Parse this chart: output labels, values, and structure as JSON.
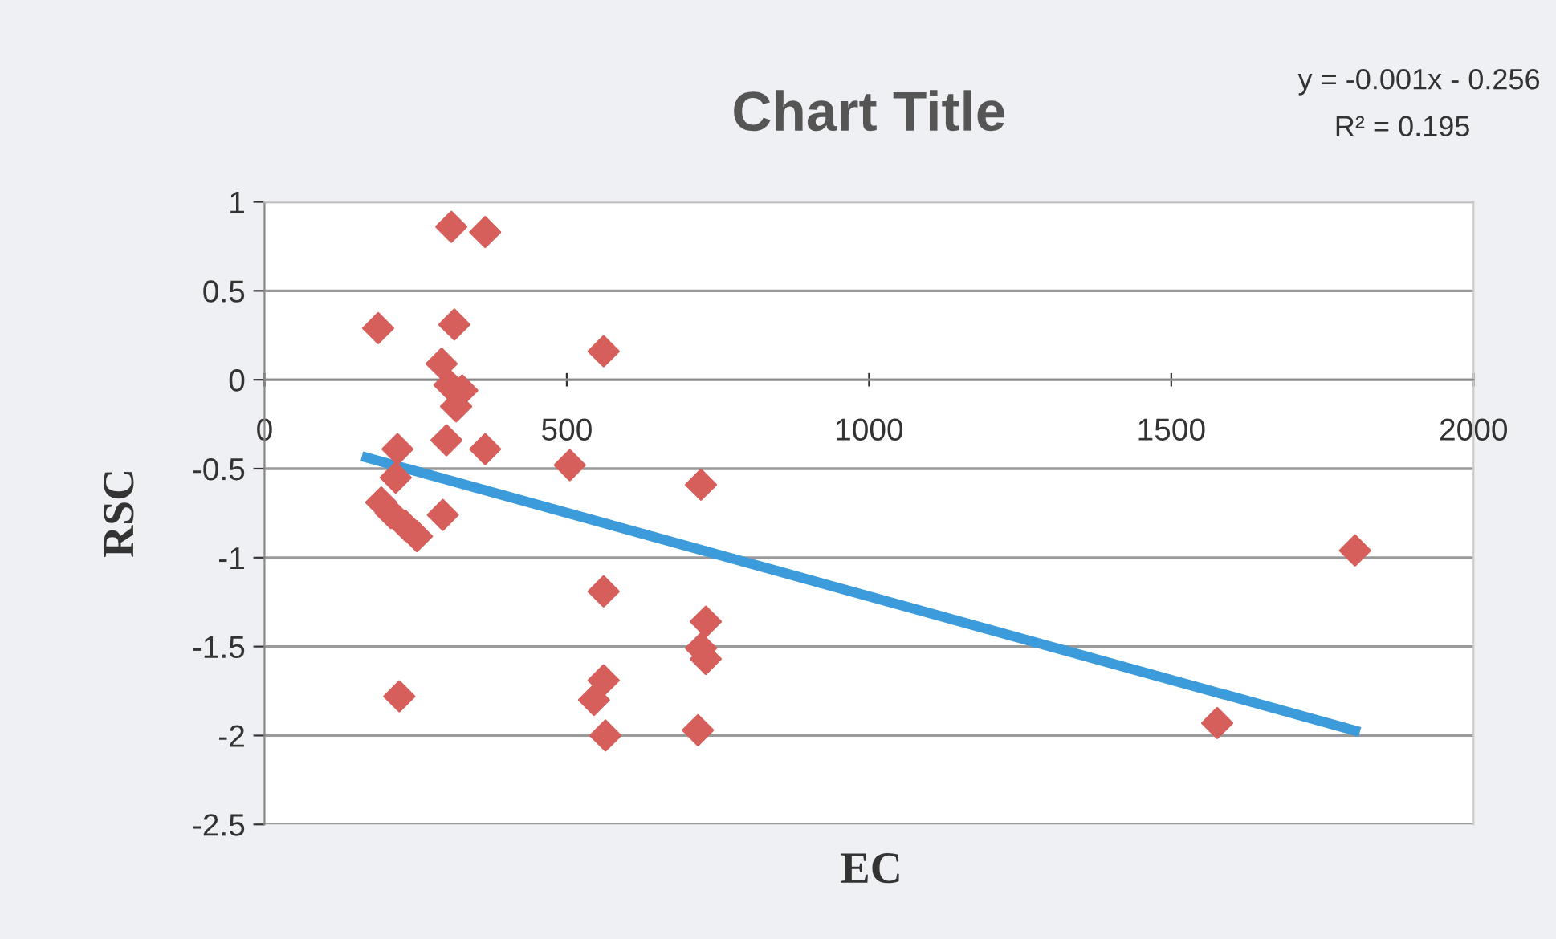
{
  "chart_data": {
    "type": "scatter",
    "title": "Chart Title",
    "xlabel": "EC",
    "ylabel": "RSC",
    "annotations": [
      "y = -0.001x - 0.256",
      "R² = 0.195"
    ],
    "xlim": [
      0,
      2000
    ],
    "xticks": [
      0,
      500,
      1000,
      1500,
      2000
    ],
    "ylim": [
      -2.5,
      1
    ],
    "yticks": [
      -2.5,
      -2,
      -1.5,
      -1,
      -0.5,
      0,
      0.5,
      1
    ],
    "grid": "y",
    "legend": false,
    "series": [
      {
        "marker": "diamond",
        "color": "#d65f5c",
        "x": [
          188,
          309,
          365,
          314,
          561,
          293,
          306,
          327,
          317,
          301,
          365,
          220,
          505,
          722,
          217,
          193,
          209,
          295,
          233,
          252,
          561,
          730,
          722,
          730,
          561,
          545,
          223,
          564,
          717,
          1576,
          1804
        ],
        "values": [
          0.29,
          0.86,
          0.83,
          0.31,
          0.16,
          0.09,
          -0.03,
          -0.06,
          -0.15,
          -0.34,
          -0.39,
          -0.39,
          -0.48,
          -0.59,
          -0.55,
          -0.69,
          -0.75,
          -0.76,
          -0.82,
          -0.88,
          -1.19,
          -1.36,
          -1.51,
          -1.57,
          -1.69,
          -1.8,
          -1.78,
          -2.0,
          -1.97,
          -1.93,
          -0.96
        ]
      },
      {
        "type": "line",
        "color": "#3b9bdb",
        "x": [
          161,
          1812
        ],
        "values": [
          -0.43,
          -1.98
        ]
      }
    ]
  }
}
